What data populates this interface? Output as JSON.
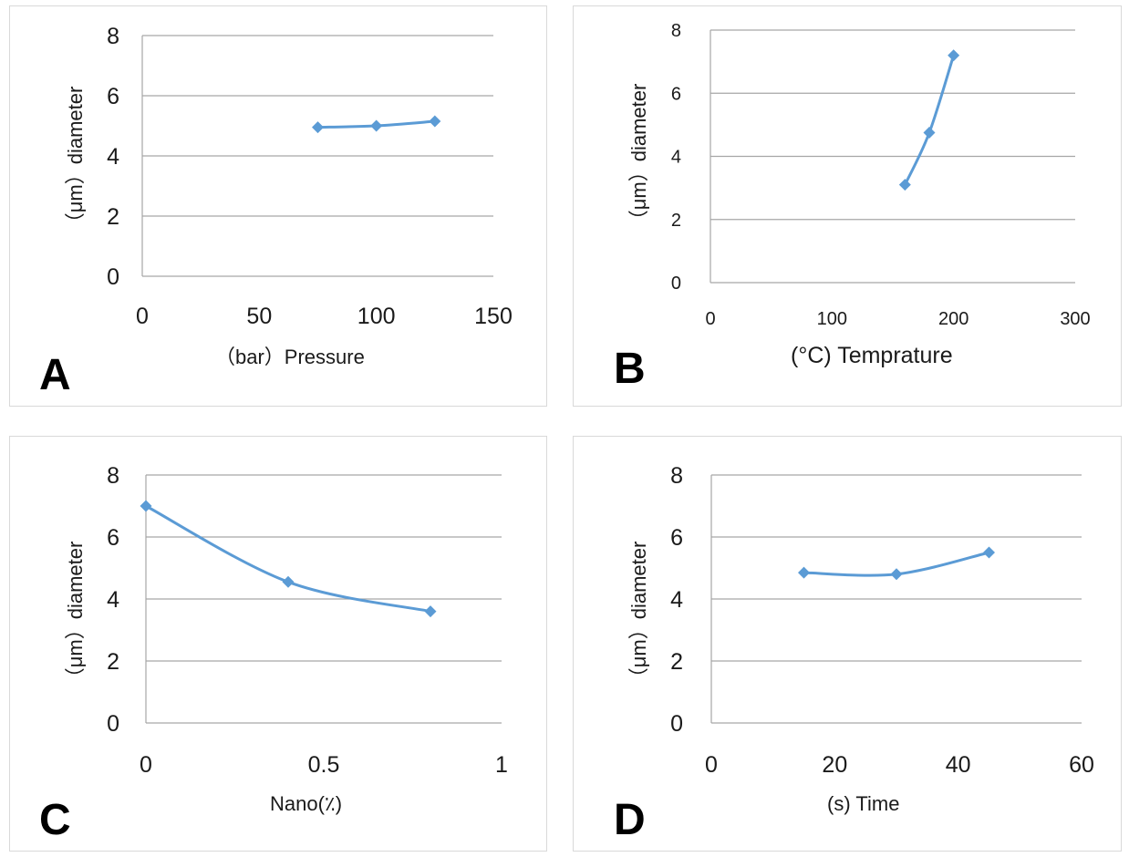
{
  "series_color": "#5b9bd5",
  "chart_data": [
    {
      "type": "line",
      "panel_label": "A",
      "xlabel": "（bar）Pressure",
      "ylabel": "（μm）diameter",
      "xlim": [
        0,
        150
      ],
      "ylim": [
        0,
        8
      ],
      "xticks": [
        0,
        50,
        100,
        150
      ],
      "yticks": [
        0,
        2,
        4,
        6,
        8
      ],
      "grid": true,
      "series": [
        {
          "x": [
            75,
            100,
            125
          ],
          "y": [
            4.95,
            5.0,
            5.15
          ]
        }
      ]
    },
    {
      "type": "line",
      "panel_label": "B",
      "xlabel": "(°C) Temprature",
      "ylabel": "（μm）diameter",
      "xlim": [
        0,
        300
      ],
      "ylim": [
        0,
        8
      ],
      "xticks": [
        0,
        100,
        200,
        300
      ],
      "yticks": [
        0,
        2,
        4,
        6,
        8
      ],
      "grid": true,
      "series": [
        {
          "x": [
            160,
            180,
            200
          ],
          "y": [
            3.1,
            4.75,
            7.2
          ]
        }
      ]
    },
    {
      "type": "line",
      "panel_label": "C",
      "xlabel": "Nano(٪)",
      "ylabel": "（μm）diameter",
      "xlim": [
        0,
        1
      ],
      "ylim": [
        0,
        8
      ],
      "xticks": [
        0,
        0.5,
        1
      ],
      "yticks": [
        0,
        2,
        4,
        6,
        8
      ],
      "grid": true,
      "series": [
        {
          "x": [
            0,
            0.4,
            0.8
          ],
          "y": [
            7.0,
            4.55,
            3.6
          ]
        }
      ]
    },
    {
      "type": "line",
      "panel_label": "D",
      "xlabel": "(s) Time",
      "ylabel": "（μm）diameter",
      "xlim": [
        0,
        60
      ],
      "ylim": [
        0,
        8
      ],
      "xticks": [
        0,
        20,
        40,
        60
      ],
      "yticks": [
        0,
        2,
        4,
        6,
        8
      ],
      "grid": true,
      "series": [
        {
          "x": [
            15,
            30,
            45
          ],
          "y": [
            4.85,
            4.8,
            5.5
          ]
        }
      ]
    }
  ]
}
